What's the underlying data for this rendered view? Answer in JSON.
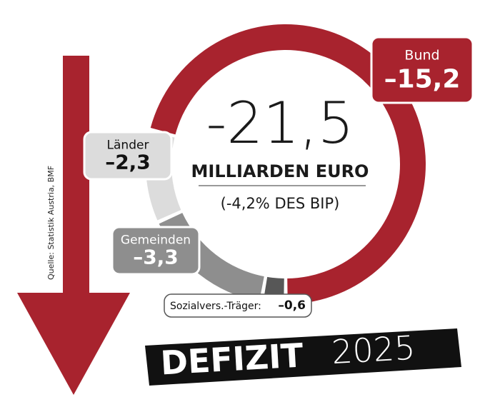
{
  "chart_data": {
    "type": "donut",
    "total": "-21,5",
    "unit": "MILLIARDEN EURO",
    "subtitle": "(-4,2% DES BIP)",
    "title": "DEFIZIT",
    "year": "2025",
    "source": "Quelle: Statistik Austria, BMF",
    "categories": [
      "Bund",
      "Länder",
      "Gemeinden",
      "Sozialvers.-Träger:"
    ],
    "values": [
      -15.2,
      -2.3,
      -3.3,
      -0.6
    ],
    "value_labels": [
      "–15,2",
      "–2,3",
      "–3,3",
      "–0,6"
    ],
    "colors": [
      "#a8232e",
      "#dcdcdc",
      "#8e8e8e",
      "#575757"
    ]
  }
}
